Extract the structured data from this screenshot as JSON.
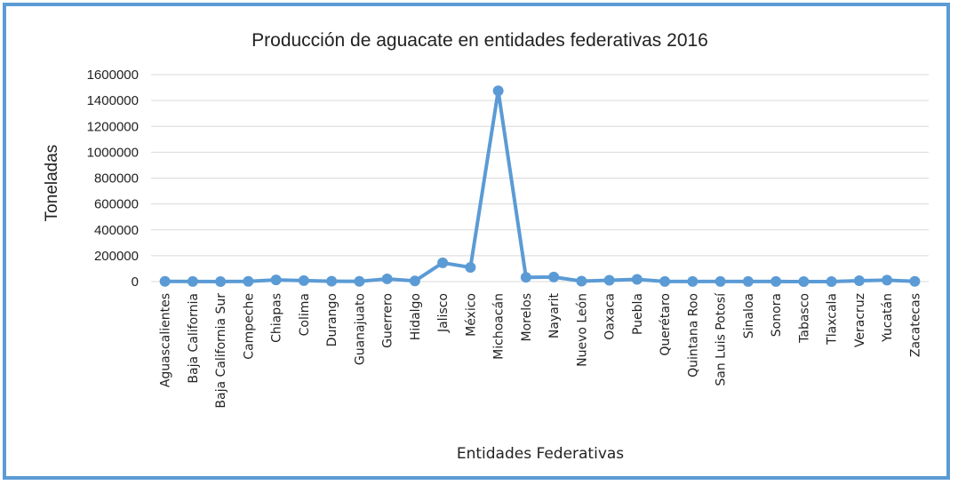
{
  "chart_data": {
    "type": "line",
    "title": "Producción de aguacate en entidades federativas 2016",
    "xlabel": "Entidades Federativas",
    "ylabel": "Toneladas",
    "ylim": [
      0,
      1600000
    ],
    "yticks": [
      "0",
      "200000",
      "400000",
      "600000",
      "800000",
      "1000000",
      "1200000",
      "1400000",
      "1600000"
    ],
    "grid": true,
    "legend": "none",
    "color": "#5b9bd5",
    "categories": [
      "Aguascalientes",
      "Baja California",
      "Baja California Sur",
      "Campeche",
      "Chiapas",
      "Colima",
      "Durango",
      "Guanajuato",
      "Guerrero",
      "Hidalgo",
      "Jalisco",
      "México",
      "Michoacán",
      "Morelos",
      "Nayarit",
      "Nuevo León",
      "Oaxaca",
      "Puebla",
      "Querétaro",
      "Quintana Roo",
      "San Luis Potosí",
      "Sinaloa",
      "Sonora",
      "Tabasco",
      "Tlaxcala",
      "Veracruz",
      "Yucatán",
      "Zacatecas"
    ],
    "values": [
      1500,
      500,
      300,
      1800,
      13000,
      8000,
      3000,
      2000,
      21000,
      5000,
      145000,
      110000,
      1475000,
      33000,
      35000,
      3500,
      10000,
      17000,
      1000,
      500,
      800,
      1000,
      500,
      300,
      100,
      7000,
      11000,
      2000
    ]
  }
}
